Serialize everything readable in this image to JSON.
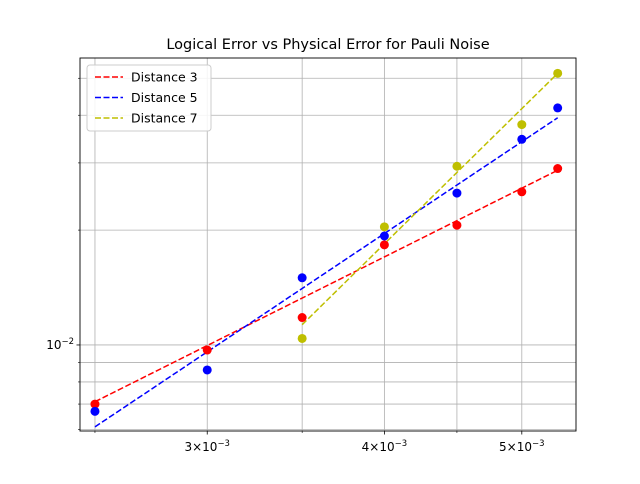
{
  "chart_data": {
    "type": "scatter",
    "title": "Logical Error vs Physical Error for Pauli Noise",
    "xlabel": "",
    "ylabel": "",
    "xscale": "log",
    "yscale": "log",
    "xlim": [
      0.00244,
      0.00546
    ],
    "ylim": [
      0.00595,
      0.0565
    ],
    "grid": true,
    "legend": "top-left",
    "x_ticks": [
      {
        "value": 0.003,
        "base": "3",
        "exp": "−3"
      },
      {
        "value": 0.004,
        "base": "4",
        "exp": "−3"
      },
      {
        "value": 0.005,
        "base": "5",
        "exp": "−3"
      }
    ],
    "y_ticks": [
      {
        "value": 0.01,
        "base": "10",
        "exp": "−2"
      }
    ],
    "x_minor_grid": [
      0.0025,
      0.0035,
      0.0045
    ],
    "y_minor_grid": [
      0.006,
      0.007,
      0.008,
      0.009,
      0.02,
      0.03,
      0.04,
      0.05
    ],
    "series": [
      {
        "name": "Distance 3",
        "color": "#ff0000",
        "points": [
          {
            "x": 0.0025,
            "y": 0.007
          },
          {
            "x": 0.003,
            "y": 0.0097
          },
          {
            "x": 0.0035,
            "y": 0.0118
          },
          {
            "x": 0.004,
            "y": 0.0183
          },
          {
            "x": 0.0045,
            "y": 0.0206
          },
          {
            "x": 0.005,
            "y": 0.0252
          },
          {
            "x": 0.0053,
            "y": 0.029
          }
        ],
        "fit": [
          {
            "x": 0.0025,
            "y": 0.0071
          },
          {
            "x": 0.0053,
            "y": 0.0287
          }
        ]
      },
      {
        "name": "Distance 5",
        "color": "#0000ff",
        "points": [
          {
            "x": 0.0025,
            "y": 0.0067
          },
          {
            "x": 0.003,
            "y": 0.0086
          },
          {
            "x": 0.0035,
            "y": 0.015
          },
          {
            "x": 0.004,
            "y": 0.0193
          },
          {
            "x": 0.0045,
            "y": 0.025
          },
          {
            "x": 0.005,
            "y": 0.0346
          },
          {
            "x": 0.0053,
            "y": 0.0418
          }
        ],
        "fit": [
          {
            "x": 0.0025,
            "y": 0.0061
          },
          {
            "x": 0.0053,
            "y": 0.0394
          }
        ]
      },
      {
        "name": "Distance 7",
        "color": "#bfbf00",
        "points": [
          {
            "x": 0.0035,
            "y": 0.0104
          },
          {
            "x": 0.004,
            "y": 0.0204
          },
          {
            "x": 0.0045,
            "y": 0.0294
          },
          {
            "x": 0.005,
            "y": 0.0378
          },
          {
            "x": 0.0053,
            "y": 0.0515
          }
        ],
        "fit": [
          {
            "x": 0.0035,
            "y": 0.0113
          },
          {
            "x": 0.0053,
            "y": 0.0515
          }
        ]
      }
    ]
  }
}
